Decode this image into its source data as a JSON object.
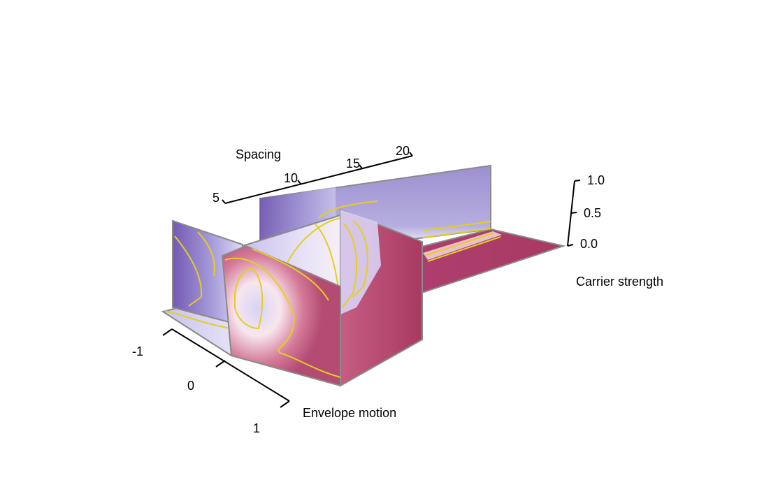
{
  "chart_data": {
    "type": "3d-slice-surface",
    "title": "",
    "axes": {
      "x": {
        "label": "Envelope motion",
        "ticks": [
          "-1",
          "0",
          "1"
        ]
      },
      "y": {
        "label": "Spacing",
        "ticks": [
          "5",
          "10",
          "15",
          "20"
        ]
      },
      "z": {
        "label": "Carrier strength",
        "ticks": [
          "0.0",
          "0.5",
          "1.0"
        ],
        "range": [
          0,
          1
        ]
      }
    },
    "slices": [
      {
        "plane": "floor",
        "z": 0.0
      },
      {
        "plane": "x",
        "x": -1
      },
      {
        "plane": "y",
        "y": 5
      },
      {
        "plane": "y",
        "y": 10
      },
      {
        "plane": "x",
        "x": 1
      }
    ],
    "colors": {
      "high": "#6b53ac",
      "mid": "#f1e9f5",
      "low": "#a83a62",
      "contour": "#e3cf1e",
      "panel_edge": "#8a8a8a"
    }
  }
}
